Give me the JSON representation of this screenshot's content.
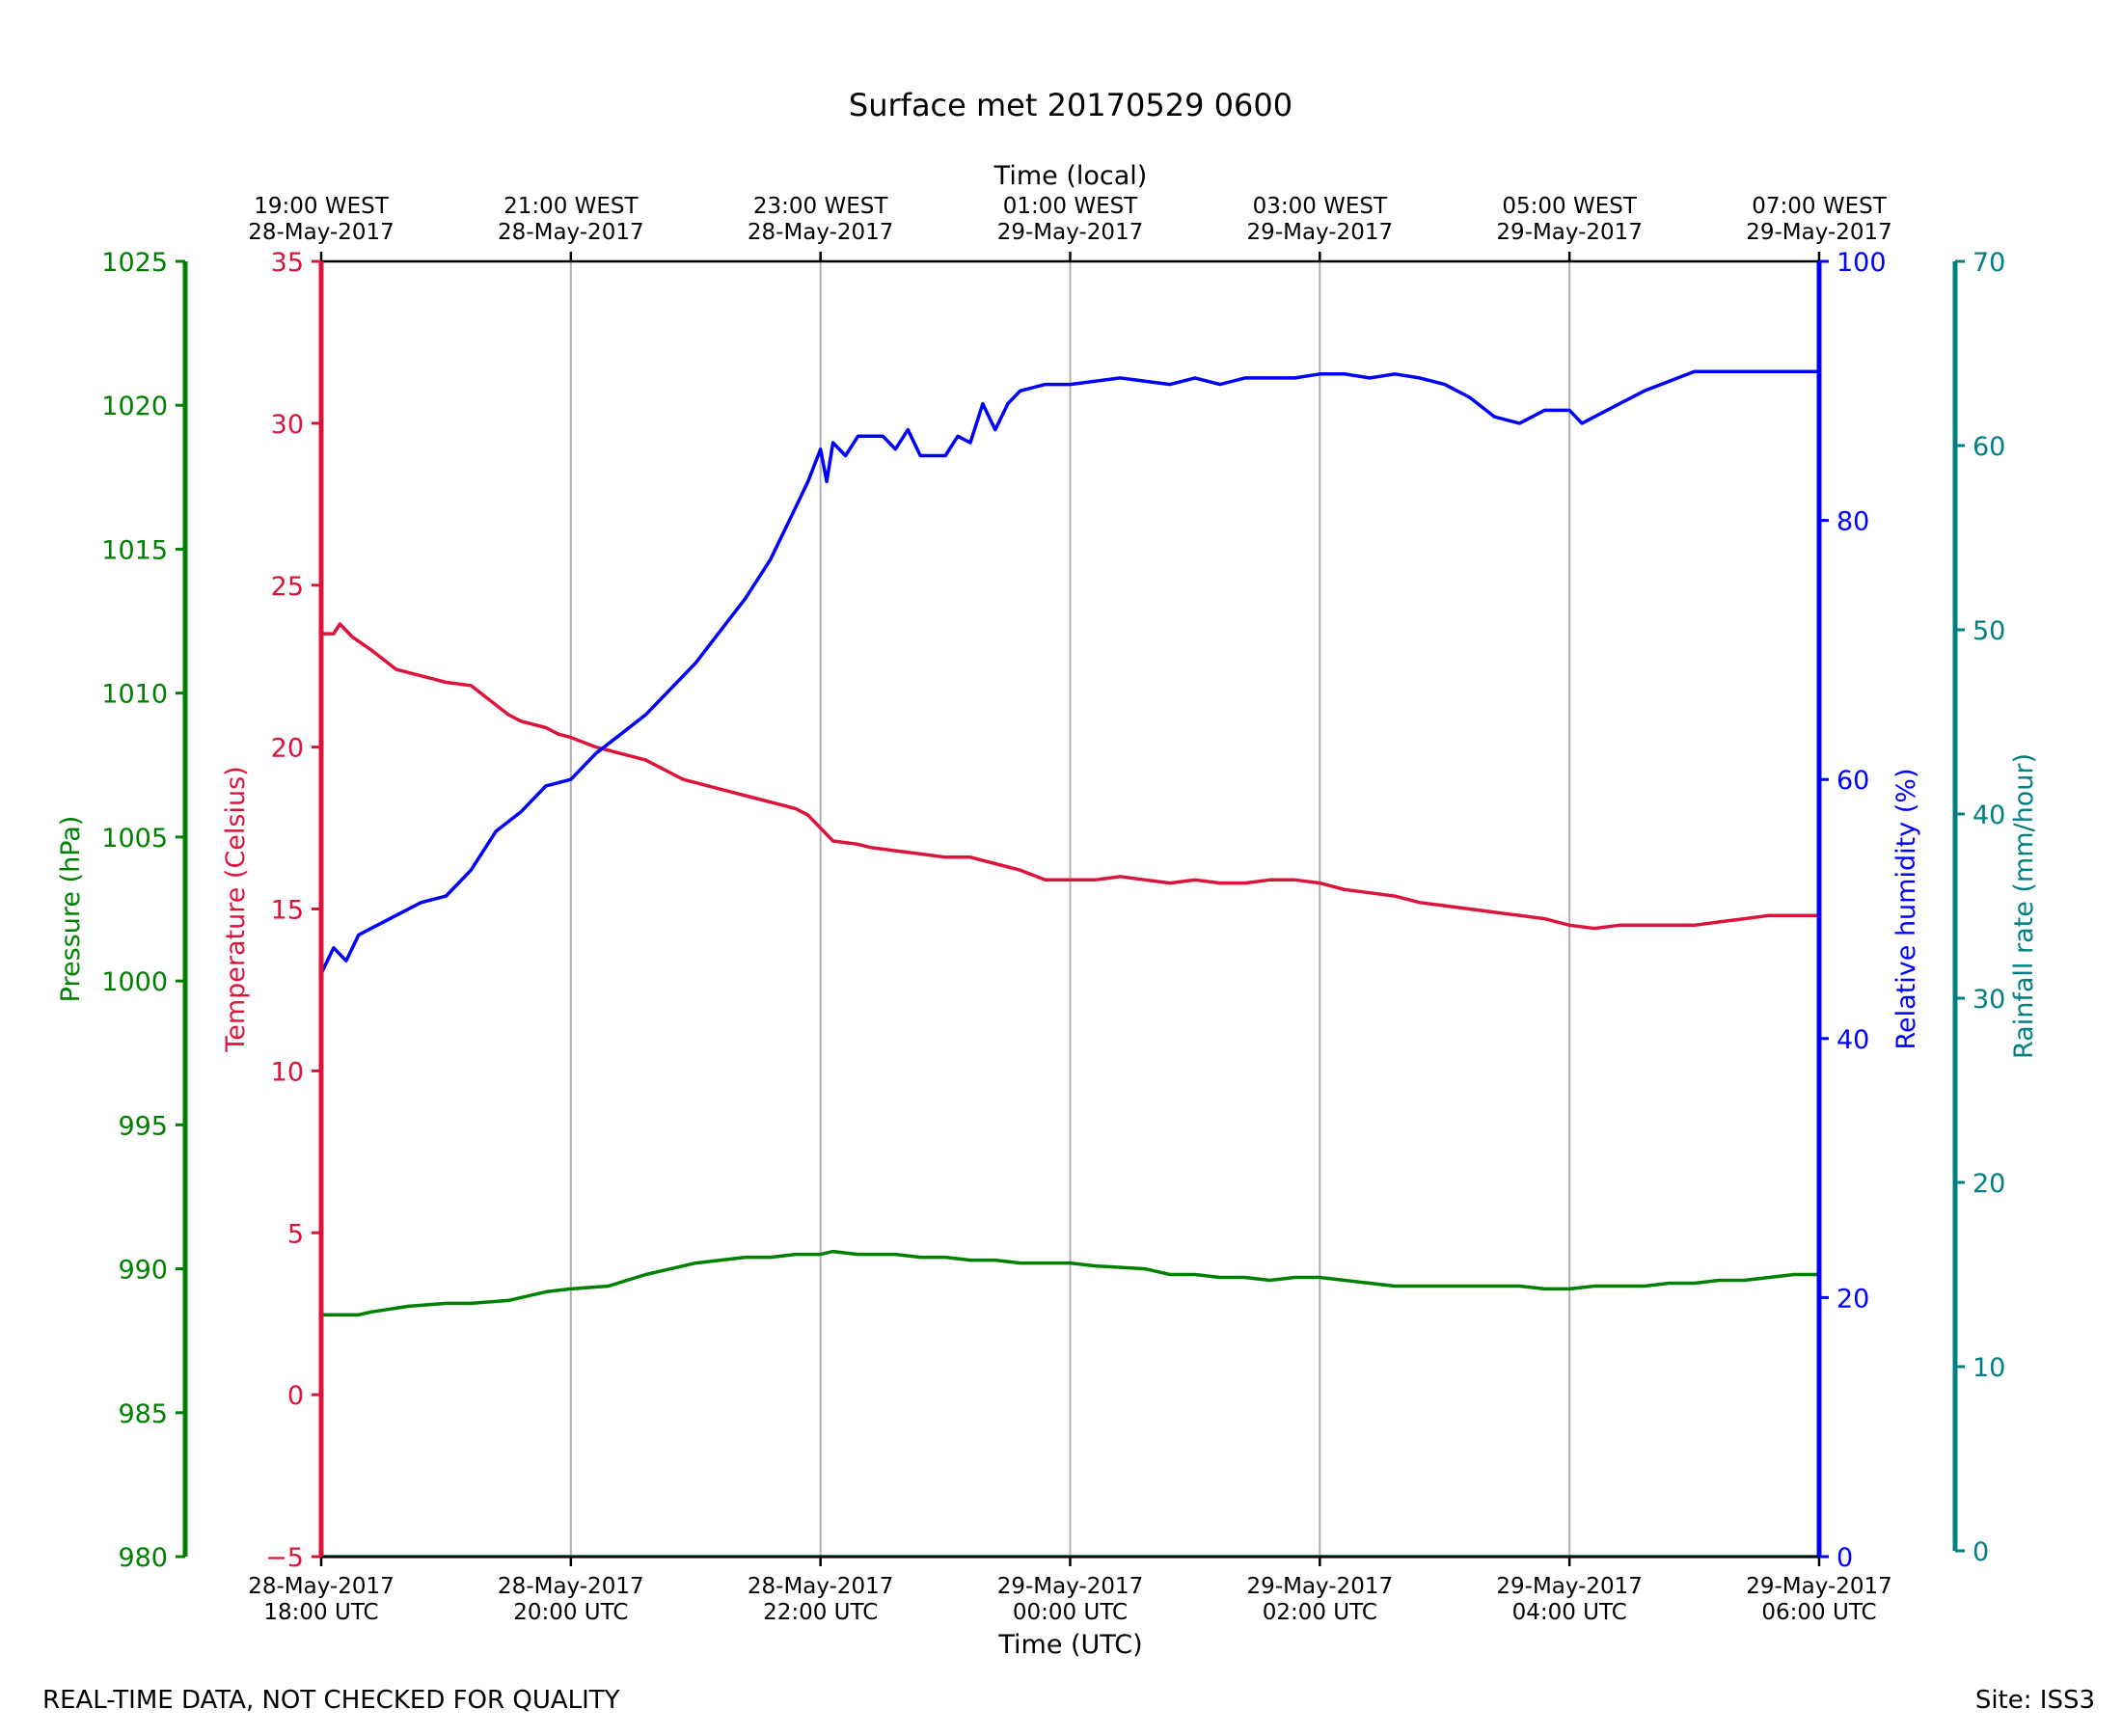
{
  "chart_data": {
    "type": "line",
    "title": "Surface met 20170529 0600",
    "xlabel": "Time (UTC)",
    "x2label": "Time (local)",
    "x_ticks": [
      {
        "hours": 0,
        "utc_date": "28-May-2017",
        "utc_time": "18:00 UTC",
        "local_time": "19:00 WEST",
        "local_date": "28-May-2017"
      },
      {
        "hours": 2,
        "utc_date": "28-May-2017",
        "utc_time": "20:00 UTC",
        "local_time": "21:00 WEST",
        "local_date": "28-May-2017"
      },
      {
        "hours": 4,
        "utc_date": "28-May-2017",
        "utc_time": "22:00 UTC",
        "local_time": "23:00 WEST",
        "local_date": "28-May-2017"
      },
      {
        "hours": 6,
        "utc_date": "29-May-2017",
        "utc_time": "00:00 UTC",
        "local_time": "01:00 WEST",
        "local_date": "29-May-2017"
      },
      {
        "hours": 8,
        "utc_date": "29-May-2017",
        "utc_time": "02:00 UTC",
        "local_time": "03:00 WEST",
        "local_date": "29-May-2017"
      },
      {
        "hours": 10,
        "utc_date": "29-May-2017",
        "utc_time": "04:00 UTC",
        "local_time": "05:00 WEST",
        "local_date": "29-May-2017"
      },
      {
        "hours": 12,
        "utc_date": "29-May-2017",
        "utc_time": "06:00 UTC",
        "local_time": "07:00 WEST",
        "local_date": "29-May-2017"
      }
    ],
    "grid": "vertical",
    "axes": {
      "pressure": {
        "label": "Pressure (hPa)",
        "ylim": [
          980,
          1025
        ],
        "ticks": [
          980,
          985,
          990,
          995,
          1000,
          1005,
          1010,
          1015,
          1020,
          1025
        ],
        "color": "#008000"
      },
      "temperature": {
        "label": "Temperature (Celsius)",
        "ylim": [
          -5,
          35
        ],
        "ticks": [
          -5,
          0,
          5,
          10,
          15,
          20,
          25,
          30,
          35
        ],
        "tick_labels": [
          "−5",
          "0",
          "5",
          "10",
          "15",
          "20",
          "25",
          "30",
          "35"
        ],
        "color": "#dc143c"
      },
      "humidity": {
        "label": "Relative humidity (%)",
        "ylim": [
          0,
          100
        ],
        "ticks": [
          0,
          20,
          40,
          60,
          80,
          100
        ],
        "color": "#0000ff"
      },
      "rainfall": {
        "label": "Rainfall rate (mm/hour)",
        "ylim": [
          0,
          70
        ],
        "ticks": [
          0,
          10,
          20,
          30,
          40,
          50,
          60,
          70
        ],
        "color": "#008080"
      }
    },
    "series": [
      {
        "key": "temperature",
        "axis": "temperature",
        "color": "#dc143c",
        "x": [
          0,
          0.1,
          0.15,
          0.25,
          0.4,
          0.6,
          0.7,
          0.9,
          1.0,
          1.2,
          1.3,
          1.5,
          1.6,
          1.8,
          1.9,
          2.0,
          2.2,
          2.4,
          2.6,
          2.8,
          2.9,
          3.0,
          3.2,
          3.4,
          3.6,
          3.8,
          3.9,
          4.0,
          4.1,
          4.3,
          4.4,
          4.6,
          4.8,
          5.0,
          5.2,
          5.4,
          5.6,
          5.8,
          6.0,
          6.2,
          6.4,
          6.6,
          6.8,
          7.0,
          7.2,
          7.4,
          7.6,
          7.8,
          8.0,
          8.2,
          8.4,
          8.6,
          8.8,
          9.0,
          9.2,
          9.4,
          9.6,
          9.8,
          10.0,
          10.2,
          10.4,
          10.6,
          10.8,
          11.0,
          11.2,
          11.4,
          11.6,
          11.8,
          12.0
        ],
        "y": [
          23.5,
          23.5,
          23.8,
          23.4,
          23.0,
          22.4,
          22.3,
          22.1,
          22.0,
          21.9,
          21.6,
          21.0,
          20.8,
          20.6,
          20.4,
          20.3,
          20.0,
          19.8,
          19.6,
          19.2,
          19.0,
          18.9,
          18.7,
          18.5,
          18.3,
          18.1,
          17.9,
          17.5,
          17.1,
          17.0,
          16.9,
          16.8,
          16.7,
          16.6,
          16.6,
          16.4,
          16.2,
          15.9,
          15.9,
          15.9,
          16.0,
          15.9,
          15.8,
          15.9,
          15.8,
          15.8,
          15.9,
          15.9,
          15.8,
          15.6,
          15.5,
          15.4,
          15.2,
          15.1,
          15.0,
          14.9,
          14.8,
          14.7,
          14.5,
          14.4,
          14.5,
          14.5,
          14.5,
          14.5,
          14.6,
          14.7,
          14.8,
          14.8,
          14.8
        ]
      },
      {
        "key": "humidity",
        "axis": "humidity",
        "color": "#0000ff",
        "x": [
          0,
          0.1,
          0.2,
          0.3,
          0.4,
          0.5,
          0.6,
          0.8,
          1.0,
          1.2,
          1.4,
          1.6,
          1.8,
          2.0,
          2.2,
          2.4,
          2.6,
          2.8,
          3.0,
          3.2,
          3.4,
          3.6,
          3.8,
          3.9,
          4.0,
          4.05,
          4.1,
          4.2,
          4.3,
          4.5,
          4.6,
          4.7,
          4.8,
          5.0,
          5.1,
          5.2,
          5.3,
          5.4,
          5.5,
          5.6,
          5.8,
          6.0,
          6.4,
          6.8,
          7.0,
          7.2,
          7.4,
          7.8,
          8.0,
          8.2,
          8.4,
          8.6,
          8.8,
          9.0,
          9.2,
          9.4,
          9.6,
          9.8,
          10.0,
          10.1,
          10.2,
          10.4,
          10.6,
          11.0,
          11.4,
          11.8,
          12.0
        ],
        "y": [
          45,
          47,
          46,
          48,
          48.5,
          49,
          49.5,
          50.5,
          51,
          53,
          56,
          57.5,
          59.5,
          60,
          62,
          63.5,
          65,
          67,
          69,
          71.5,
          74,
          77,
          81,
          83,
          85.5,
          83,
          86,
          85,
          86.5,
          86.5,
          85.5,
          87,
          85,
          85,
          86.5,
          86,
          89,
          87,
          89,
          90,
          90.5,
          90.5,
          91,
          90.5,
          91,
          90.5,
          91,
          91,
          91.3,
          91.3,
          91,
          91.3,
          91,
          90.5,
          89.5,
          88,
          87.5,
          88.5,
          88.5,
          87.5,
          88,
          89,
          90,
          91.5,
          91.5,
          91.5,
          91.5
        ]
      },
      {
        "key": "pressure",
        "axis": "pressure",
        "color": "#008000",
        "x": [
          0,
          0.3,
          0.4,
          0.7,
          1.0,
          1.2,
          1.5,
          1.6,
          1.8,
          2.0,
          2.3,
          2.6,
          2.8,
          3.0,
          3.2,
          3.4,
          3.6,
          3.8,
          4.0,
          4.1,
          4.3,
          4.6,
          4.8,
          5.0,
          5.2,
          5.4,
          5.6,
          5.8,
          6.0,
          6.2,
          6.6,
          6.8,
          7.0,
          7.2,
          7.4,
          7.6,
          7.8,
          8.0,
          8.2,
          8.4,
          8.6,
          8.8,
          9.0,
          9.2,
          9.4,
          9.6,
          9.8,
          10.0,
          10.2,
          10.4,
          10.6,
          10.8,
          11.0,
          11.2,
          11.4,
          11.6,
          11.8,
          12.0
        ],
        "y": [
          988.4,
          988.4,
          988.5,
          988.7,
          988.8,
          988.8,
          988.9,
          989.0,
          989.2,
          989.3,
          989.4,
          989.8,
          990.0,
          990.2,
          990.3,
          990.4,
          990.4,
          990.5,
          990.5,
          990.6,
          990.5,
          990.5,
          990.4,
          990.4,
          990.3,
          990.3,
          990.2,
          990.2,
          990.2,
          990.1,
          990.0,
          989.8,
          989.8,
          989.7,
          989.7,
          989.6,
          989.7,
          989.7,
          989.6,
          989.5,
          989.4,
          989.4,
          989.4,
          989.4,
          989.4,
          989.4,
          989.3,
          989.3,
          989.4,
          989.4,
          989.4,
          989.5,
          989.5,
          989.6,
          989.6,
          989.7,
          989.8,
          989.8
        ]
      },
      {
        "key": "rainfall",
        "axis": "rainfall",
        "color": "#008080",
        "x": [
          0,
          12
        ],
        "y": [
          0,
          0
        ]
      }
    ]
  },
  "footer": {
    "left": "REAL-TIME DATA, NOT CHECKED FOR QUALITY",
    "right": "Site: ISS3"
  }
}
